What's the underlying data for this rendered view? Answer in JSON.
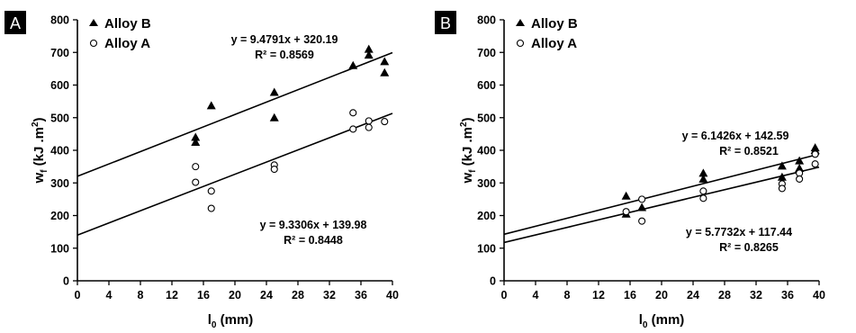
{
  "chart_data": [
    {
      "type": "scatter",
      "panel_label": "A",
      "xlabel": "l",
      "xlabel_sub": "0",
      "xlabel_unit": " (mm)",
      "ylabel": "w",
      "ylabel_sub": "f",
      "ylabel_unit": " (kJ .m",
      "ylabel_sup": "2",
      "ylabel_close": ")",
      "xlim": [
        0,
        40
      ],
      "ylim": [
        0,
        800
      ],
      "xticks": [
        0,
        4,
        8,
        12,
        16,
        20,
        24,
        28,
        32,
        36,
        40
      ],
      "yticks": [
        0,
        100,
        200,
        300,
        400,
        500,
        600,
        700,
        800
      ],
      "grid": false,
      "legend_position": "top-left",
      "series": [
        {
          "name": "Alloy B",
          "marker": "filled-triangle",
          "points": [
            [
              15,
              440
            ],
            [
              15,
              425
            ],
            [
              17,
              537
            ],
            [
              25,
              578
            ],
            [
              25,
              500
            ],
            [
              35,
              660
            ],
            [
              37,
              710
            ],
            [
              37,
              692
            ],
            [
              39,
              672
            ],
            [
              39,
              638
            ]
          ],
          "fit": {
            "slope": 9.4791,
            "intercept": 320.19,
            "equation": "y = 9.4791x + 320.19",
            "r2": "R² = 0.8569"
          }
        },
        {
          "name": "Alloy A",
          "marker": "open-circle",
          "points": [
            [
              15,
              350
            ],
            [
              15,
              302
            ],
            [
              17,
              275
            ],
            [
              17,
              222
            ],
            [
              25,
              355
            ],
            [
              25,
              342
            ],
            [
              35,
              515
            ],
            [
              35,
              465
            ],
            [
              37,
              490
            ],
            [
              37,
              470
            ],
            [
              39,
              488
            ]
          ],
          "fit": {
            "slope": 9.3306,
            "intercept": 139.98,
            "equation": "y = 9.3306x + 139.98",
            "r2": "R² = 0.8448"
          }
        }
      ]
    },
    {
      "type": "scatter",
      "panel_label": "B",
      "xlabel": "l",
      "xlabel_sub": "0",
      "xlabel_unit": " (mm)",
      "ylabel": "w",
      "ylabel_sub": "f",
      "ylabel_unit": " (kJ .m",
      "ylabel_sup": "2",
      "ylabel_close": ")",
      "xlim": [
        0,
        40
      ],
      "ylim": [
        0,
        800
      ],
      "xticks": [
        0,
        4,
        8,
        12,
        16,
        20,
        24,
        28,
        32,
        36,
        40
      ],
      "yticks": [
        0,
        100,
        200,
        300,
        400,
        500,
        600,
        700,
        800
      ],
      "grid": false,
      "legend_position": "top-left",
      "series": [
        {
          "name": "Alloy B",
          "marker": "filled-triangle",
          "points": [
            [
              15.5,
              260
            ],
            [
              15.5,
              205
            ],
            [
              17.5,
              225
            ],
            [
              25.3,
              330
            ],
            [
              25.3,
              312
            ],
            [
              35.3,
              352
            ],
            [
              35.3,
              318
            ],
            [
              37.5,
              368
            ],
            [
              37.5,
              345
            ],
            [
              39.5,
              408
            ],
            [
              39.5,
              400
            ]
          ],
          "fit": {
            "slope": 6.1426,
            "intercept": 142.59,
            "equation": "y = 6.1426x + 142.59",
            "r2": "R² = 0.8521"
          }
        },
        {
          "name": "Alloy A",
          "marker": "open-circle",
          "points": [
            [
              15.5,
              212
            ],
            [
              17.5,
              250
            ],
            [
              17.5,
              183
            ],
            [
              25.3,
              275
            ],
            [
              25.3,
              253
            ],
            [
              35.3,
              297
            ],
            [
              35.3,
              283
            ],
            [
              37.5,
              330
            ],
            [
              37.5,
              312
            ],
            [
              39.5,
              388
            ],
            [
              39.5,
              358
            ]
          ],
          "fit": {
            "slope": 5.7732,
            "intercept": 117.44,
            "equation": "y = 5.7732x + 117.44",
            "r2": "R² = 0.8265"
          }
        }
      ]
    }
  ]
}
